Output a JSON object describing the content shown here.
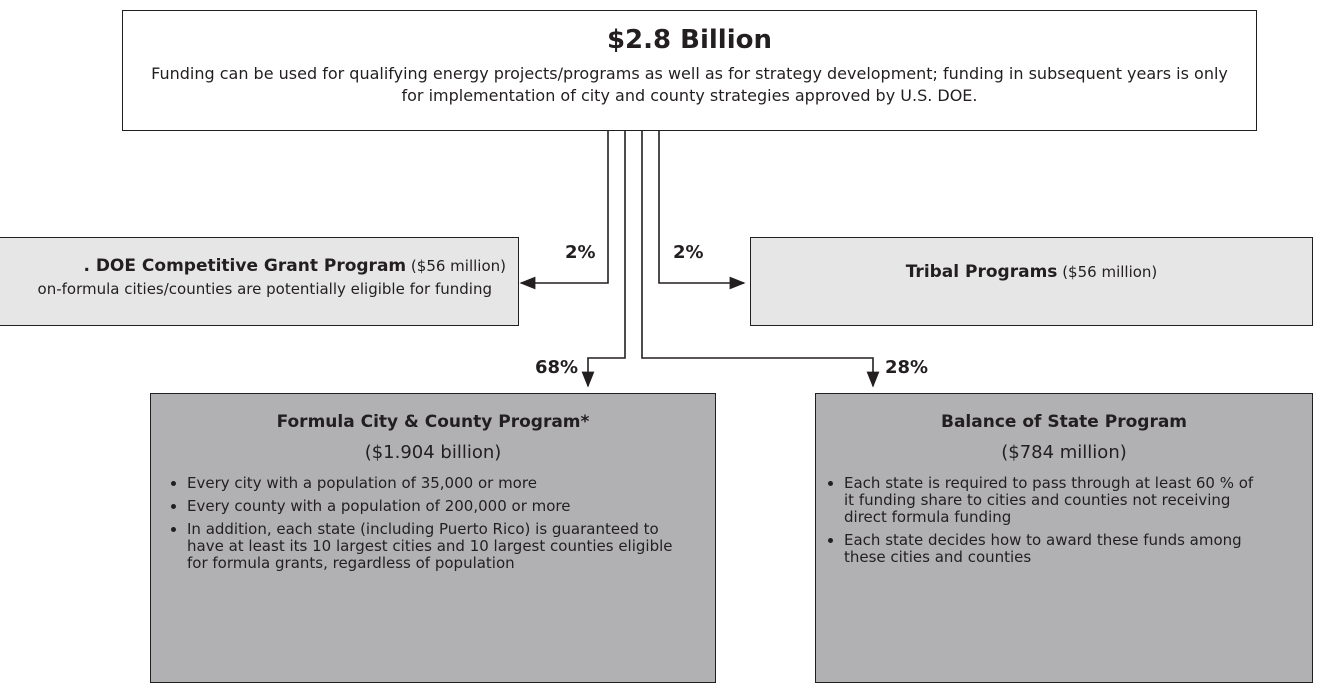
{
  "header": {
    "title": "$2.8 Billion",
    "description": "Funding can be used for qualifying energy projects/programs as well as for strategy development; funding in subsequent years is only for implementation of city and county strategies approved by U.S. DOE."
  },
  "branches": [
    {
      "percent": "2%",
      "name": ". DOE Competitive Grant Program",
      "amount": "($56 million)",
      "description": "on-formula cities/counties are potentially eligible for funding"
    },
    {
      "percent": "2%",
      "name": "Tribal Programs",
      "amount": "($56 million)"
    },
    {
      "percent": "68%",
      "name": "Formula City & County Program*",
      "amount": "($1.904 billion)",
      "bullets": [
        "Every city with a population of 35,000 or more",
        "Every county with a population of 200,000 or more",
        "In addition, each state (including Puerto Rico) is guaranteed to have at least its 10 largest cities and 10 largest counties eligible for formula grants, regardless of population"
      ]
    },
    {
      "percent": "28%",
      "name": "Balance of State Program",
      "amount": "($784 million)",
      "bullets": [
        "Each state is required to pass through at least 60 % of it funding share to cities and counties not receiving direct formula funding",
        "Each state decides how to award these funds among these cities and counties"
      ]
    }
  ]
}
